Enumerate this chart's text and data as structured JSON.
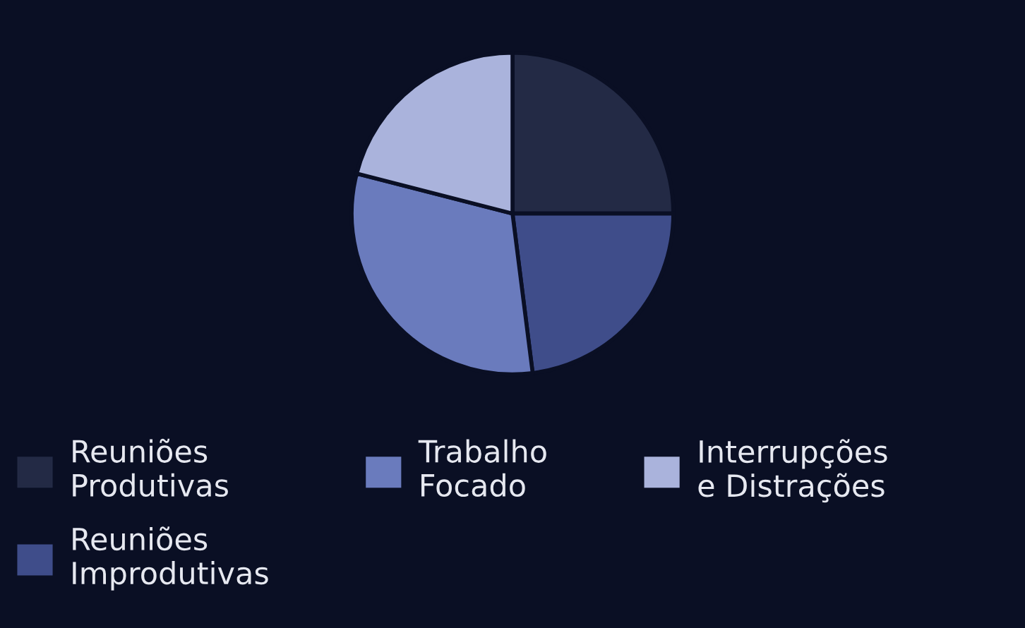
{
  "chart_data": {
    "type": "pie",
    "categories": [
      "Reuniões Produtivas",
      "Reuniões Improdutivas",
      "Trabalho Focado",
      "Interrupções e Distrações"
    ],
    "values": [
      25,
      23,
      31,
      21
    ],
    "colors": [
      "#232a45",
      "#3f4d8a",
      "#6a7bbd",
      "#aab3dc"
    ],
    "legend": "bottom"
  }
}
